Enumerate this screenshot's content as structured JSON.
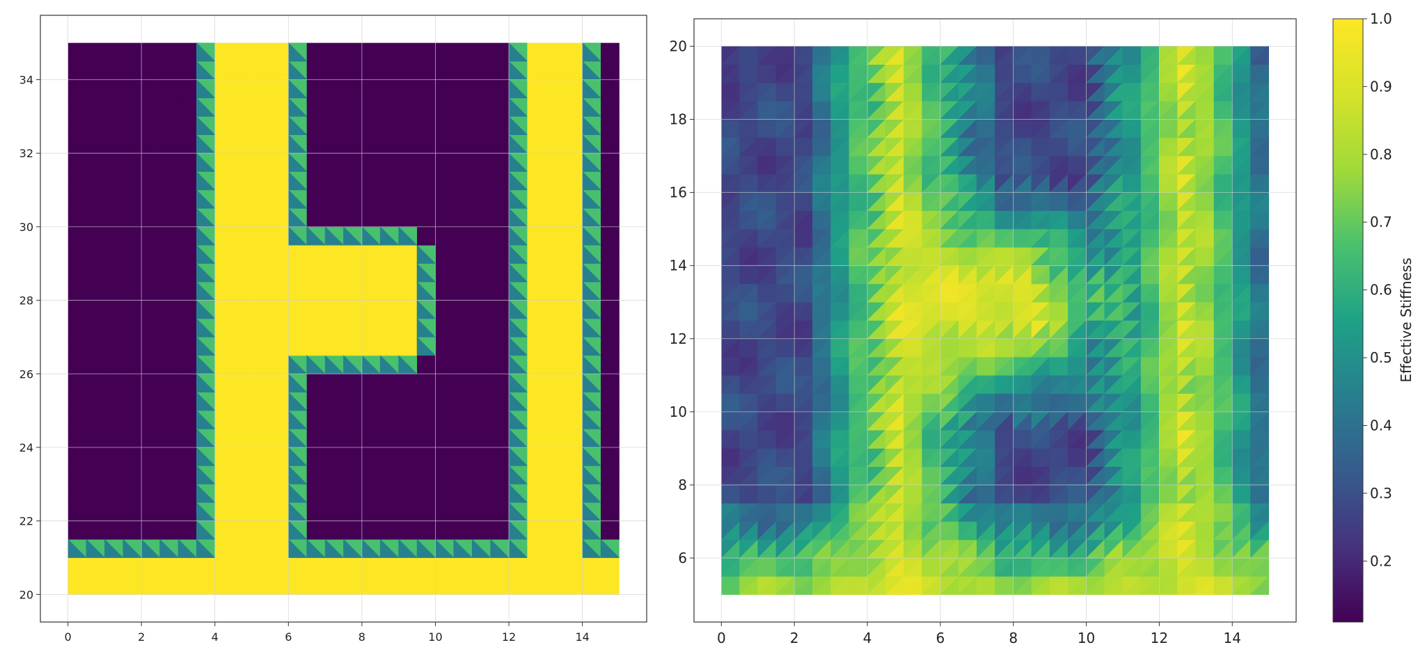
{
  "chart_data": [
    {
      "type": "heatmap",
      "title": "",
      "xlabel": "",
      "ylabel": "",
      "xlim": [
        -0.75,
        15.75
      ],
      "ylim": [
        19.25,
        35.75
      ],
      "x_ticks": [
        0,
        2,
        4,
        6,
        8,
        10,
        12,
        14
      ],
      "y_ticks": [
        20,
        22,
        24,
        26,
        28,
        30,
        32,
        34
      ],
      "grid": true,
      "grid_x": [
        0,
        0.5,
        1,
        1.5,
        2,
        2.5,
        3,
        3.5,
        4,
        4.5,
        5,
        5.5,
        6,
        6.5,
        7,
        7.5,
        8,
        8.5,
        9,
        9.5,
        10,
        10.5,
        11,
        11.5,
        12,
        12.5,
        13,
        13.5,
        14,
        14.5,
        15
      ],
      "grid_y": [
        20,
        20.5,
        21,
        21.5,
        22,
        22.5,
        23,
        23.5,
        24,
        24.5,
        25,
        25.5,
        26,
        26.5,
        27,
        27.5,
        28,
        28.5,
        29,
        29.5,
        30,
        30.5,
        31,
        31.5,
        32,
        32.5,
        33,
        33.5,
        34,
        34.5,
        35
      ],
      "colormap": "viridis",
      "value_range": [
        0,
        1
      ],
      "regions": [
        {
          "name": "background",
          "value": 0.0
        },
        {
          "name": "solid",
          "value": 1.0,
          "cells": "bottom bar y 20–21; vertical bars x 4–6 and x 12.5–14; middle arm x 6–9.5, y 26.5–29.5"
        },
        {
          "name": "boundary",
          "value_upper_triangle": 0.62,
          "value_lower_triangle": 0.38
        }
      ]
    },
    {
      "type": "heatmap",
      "title": "",
      "xlabel": "",
      "ylabel": "",
      "xlim": [
        -0.75,
        15.75
      ],
      "ylim": [
        4.25,
        20.75
      ],
      "x_ticks": [
        0,
        2,
        4,
        6,
        8,
        10,
        12,
        14
      ],
      "y_ticks": [
        6,
        8,
        10,
        12,
        14,
        16,
        18,
        20
      ],
      "grid": true,
      "grid_x": [
        0,
        0.5,
        1,
        1.5,
        2,
        2.5,
        3,
        3.5,
        4,
        4.5,
        5,
        5.5,
        6,
        6.5,
        7,
        7.5,
        8,
        8.5,
        9,
        9.5,
        10,
        10.5,
        11,
        11.5,
        12,
        12.5,
        13,
        13.5,
        14,
        14.5,
        15
      ],
      "grid_y": [
        5,
        5.5,
        6,
        6.5,
        7,
        7.5,
        8,
        8.5,
        9,
        9.5,
        10,
        10.5,
        11,
        11.5,
        12,
        12.5,
        13,
        13.5,
        14,
        14.5,
        15,
        15.5,
        16,
        16.5,
        17,
        17.5,
        18,
        18.5,
        19,
        19.5,
        20
      ],
      "colormap": "viridis",
      "value_range": [
        0.11,
        1.0
      ],
      "field_description": "smoothed stiffness field: ~0.85–0.95 along left column x 3.5–6, right column x 11.5–14 and middle band y 11–15; ~0.25–0.45 elsewhere; minima near corners",
      "colorbar": {
        "label": "Effective Stiffness",
        "ticks": [
          0.2,
          0.3,
          0.4,
          0.5,
          0.6,
          0.7,
          0.8,
          0.9,
          1.0
        ],
        "tick_labels": [
          "0.2",
          "0.3",
          "0.4",
          "0.5",
          "0.6",
          "0.7",
          "0.8",
          "0.9",
          "1.0"
        ],
        "range": [
          0.11,
          1.0
        ]
      }
    }
  ]
}
